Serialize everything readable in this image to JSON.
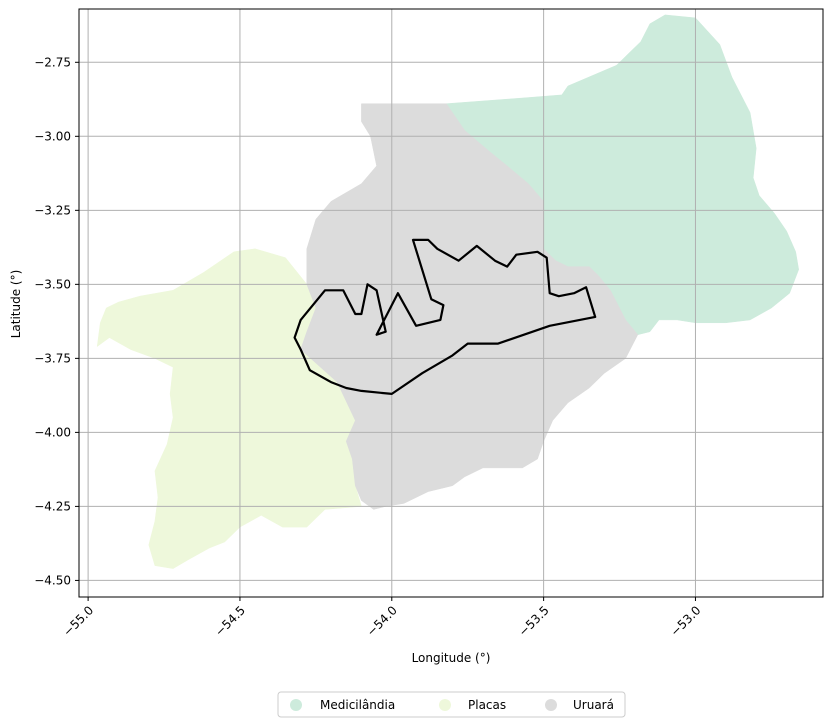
{
  "chart_data": {
    "type": "map",
    "xlabel": "Longitude (°)",
    "ylabel": "Latitude (°)",
    "xlim": [
      -55.03,
      -52.58
    ],
    "ylim": [
      -4.556,
      -2.57
    ],
    "grid": true,
    "xticks": [
      -55.0,
      -54.5,
      -54.0,
      -53.5,
      -53.0
    ],
    "xtick_labels": [
      "−55.0",
      "−54.5",
      "−54.0",
      "−53.5",
      "−53.0"
    ],
    "yticks": [
      -2.75,
      -3.0,
      -3.25,
      -3.5,
      -3.75,
      -4.0,
      -4.25,
      -4.5
    ],
    "ytick_labels": [
      "−2.75",
      "−3.00",
      "−3.25",
      "−3.50",
      "−3.75",
      "−4.00",
      "−4.25",
      "−4.50"
    ],
    "legend_position": "bottom-center",
    "regions": [
      {
        "name": "Medicilândia",
        "color": "#cdebdc",
        "outline": [
          [
            -53.82,
            -2.89
          ],
          [
            -53.56,
            -2.87
          ],
          [
            -53.44,
            -2.86
          ],
          [
            -53.42,
            -2.83
          ],
          [
            -53.26,
            -2.76
          ],
          [
            -53.18,
            -2.68
          ],
          [
            -53.15,
            -2.62
          ],
          [
            -53.1,
            -2.59
          ],
          [
            -53.0,
            -2.6
          ],
          [
            -52.92,
            -2.69
          ],
          [
            -52.88,
            -2.8
          ],
          [
            -52.82,
            -2.92
          ],
          [
            -52.8,
            -3.04
          ],
          [
            -52.81,
            -3.14
          ],
          [
            -52.79,
            -3.2
          ],
          [
            -52.74,
            -3.26
          ],
          [
            -52.7,
            -3.32
          ],
          [
            -52.67,
            -3.39
          ],
          [
            -52.66,
            -3.45
          ],
          [
            -52.69,
            -3.53
          ],
          [
            -52.75,
            -3.58
          ],
          [
            -52.82,
            -3.62
          ],
          [
            -52.9,
            -3.63
          ],
          [
            -53.0,
            -3.63
          ],
          [
            -53.06,
            -3.62
          ],
          [
            -53.12,
            -3.62
          ],
          [
            -53.15,
            -3.66
          ],
          [
            -53.19,
            -3.67
          ],
          [
            -53.23,
            -3.62
          ],
          [
            -53.28,
            -3.52
          ],
          [
            -53.32,
            -3.47
          ],
          [
            -53.35,
            -3.44
          ],
          [
            -53.42,
            -3.44
          ],
          [
            -53.46,
            -3.42
          ],
          [
            -53.5,
            -3.38
          ],
          [
            -53.5,
            -3.29
          ],
          [
            -53.5,
            -3.22
          ],
          [
            -53.55,
            -3.16
          ],
          [
            -53.62,
            -3.1
          ],
          [
            -53.68,
            -3.05
          ],
          [
            -53.76,
            -2.98
          ],
          [
            -53.82,
            -2.89
          ]
        ]
      },
      {
        "name": "Placas",
        "color": "#eef8db",
        "outline": [
          [
            -54.52,
            -3.39
          ],
          [
            -54.45,
            -3.38
          ],
          [
            -54.35,
            -3.41
          ],
          [
            -54.28,
            -3.5
          ],
          [
            -54.25,
            -3.58
          ],
          [
            -54.28,
            -3.66
          ],
          [
            -54.3,
            -3.72
          ],
          [
            -54.18,
            -3.83
          ],
          [
            -54.12,
            -3.96
          ],
          [
            -54.15,
            -4.03
          ],
          [
            -54.13,
            -4.09
          ],
          [
            -54.12,
            -4.18
          ],
          [
            -54.1,
            -4.25
          ],
          [
            -54.22,
            -4.26
          ],
          [
            -54.28,
            -4.32
          ],
          [
            -54.36,
            -4.32
          ],
          [
            -54.43,
            -4.28
          ],
          [
            -54.5,
            -4.32
          ],
          [
            -54.55,
            -4.37
          ],
          [
            -54.6,
            -4.39
          ],
          [
            -54.67,
            -4.43
          ],
          [
            -54.72,
            -4.46
          ],
          [
            -54.78,
            -4.45
          ],
          [
            -54.8,
            -4.38
          ],
          [
            -54.78,
            -4.3
          ],
          [
            -54.77,
            -4.22
          ],
          [
            -54.78,
            -4.13
          ],
          [
            -54.74,
            -4.04
          ],
          [
            -54.72,
            -3.95
          ],
          [
            -54.73,
            -3.87
          ],
          [
            -54.72,
            -3.78
          ],
          [
            -54.78,
            -3.75
          ],
          [
            -54.86,
            -3.72
          ],
          [
            -54.93,
            -3.68
          ],
          [
            -54.97,
            -3.71
          ],
          [
            -54.96,
            -3.63
          ],
          [
            -54.94,
            -3.58
          ],
          [
            -54.9,
            -3.56
          ],
          [
            -54.83,
            -3.54
          ],
          [
            -54.72,
            -3.52
          ],
          [
            -54.62,
            -3.46
          ],
          [
            -54.52,
            -3.39
          ]
        ]
      },
      {
        "name": "Uruará",
        "color": "#dcdcdc",
        "outline": [
          [
            -54.1,
            -2.89
          ],
          [
            -53.82,
            -2.89
          ],
          [
            -53.76,
            -2.98
          ],
          [
            -53.68,
            -3.05
          ],
          [
            -53.62,
            -3.1
          ],
          [
            -53.55,
            -3.16
          ],
          [
            -53.5,
            -3.22
          ],
          [
            -53.5,
            -3.29
          ],
          [
            -53.5,
            -3.38
          ],
          [
            -53.46,
            -3.42
          ],
          [
            -53.42,
            -3.44
          ],
          [
            -53.35,
            -3.44
          ],
          [
            -53.32,
            -3.47
          ],
          [
            -53.28,
            -3.52
          ],
          [
            -53.23,
            -3.62
          ],
          [
            -53.19,
            -3.67
          ],
          [
            -53.23,
            -3.75
          ],
          [
            -53.3,
            -3.8
          ],
          [
            -53.35,
            -3.85
          ],
          [
            -53.42,
            -3.9
          ],
          [
            -53.47,
            -3.96
          ],
          [
            -53.5,
            -4.03
          ],
          [
            -53.52,
            -4.09
          ],
          [
            -53.57,
            -4.12
          ],
          [
            -53.63,
            -4.12
          ],
          [
            -53.7,
            -4.12
          ],
          [
            -53.76,
            -4.15
          ],
          [
            -53.8,
            -4.18
          ],
          [
            -53.88,
            -4.2
          ],
          [
            -53.96,
            -4.24
          ],
          [
            -54.02,
            -4.25
          ],
          [
            -54.06,
            -4.26
          ],
          [
            -54.1,
            -4.23
          ],
          [
            -54.12,
            -4.18
          ],
          [
            -54.13,
            -4.09
          ],
          [
            -54.15,
            -4.03
          ],
          [
            -54.12,
            -3.96
          ],
          [
            -54.18,
            -3.83
          ],
          [
            -54.3,
            -3.72
          ],
          [
            -54.28,
            -3.66
          ],
          [
            -54.25,
            -3.58
          ],
          [
            -54.28,
            -3.5
          ],
          [
            -54.28,
            -3.38
          ],
          [
            -54.25,
            -3.28
          ],
          [
            -54.2,
            -3.22
          ],
          [
            -54.1,
            -3.16
          ],
          [
            -54.05,
            -3.1
          ],
          [
            -54.07,
            -3.0
          ],
          [
            -54.1,
            -2.95
          ],
          [
            -54.1,
            -2.89
          ]
        ]
      }
    ],
    "highlight_outline": {
      "color": "#000000",
      "outline": [
        [
          -54.3,
          -3.62
        ],
        [
          -54.22,
          -3.52
        ],
        [
          -54.16,
          -3.52
        ],
        [
          -54.12,
          -3.6
        ],
        [
          -54.1,
          -3.6
        ],
        [
          -54.08,
          -3.5
        ],
        [
          -54.05,
          -3.52
        ],
        [
          -54.02,
          -3.66
        ],
        [
          -54.05,
          -3.67
        ],
        [
          -53.98,
          -3.53
        ],
        [
          -53.92,
          -3.64
        ],
        [
          -53.84,
          -3.62
        ],
        [
          -53.83,
          -3.57
        ],
        [
          -53.87,
          -3.55
        ],
        [
          -53.93,
          -3.35
        ],
        [
          -53.88,
          -3.35
        ],
        [
          -53.85,
          -3.38
        ],
        [
          -53.78,
          -3.42
        ],
        [
          -53.72,
          -3.37
        ],
        [
          -53.66,
          -3.42
        ],
        [
          -53.62,
          -3.44
        ],
        [
          -53.59,
          -3.4
        ],
        [
          -53.52,
          -3.39
        ],
        [
          -53.49,
          -3.41
        ],
        [
          -53.48,
          -3.53
        ],
        [
          -53.45,
          -3.54
        ],
        [
          -53.4,
          -3.53
        ],
        [
          -53.36,
          -3.51
        ],
        [
          -53.33,
          -3.61
        ],
        [
          -53.48,
          -3.64
        ],
        [
          -53.65,
          -3.7
        ],
        [
          -53.75,
          -3.7
        ],
        [
          -53.8,
          -3.74
        ],
        [
          -53.9,
          -3.8
        ],
        [
          -54.0,
          -3.87
        ],
        [
          -54.1,
          -3.86
        ],
        [
          -54.15,
          -3.85
        ],
        [
          -54.2,
          -3.83
        ],
        [
          -54.27,
          -3.79
        ],
        [
          -54.3,
          -3.72
        ],
        [
          -54.32,
          -3.68
        ],
        [
          -54.3,
          -3.62
        ]
      ]
    }
  },
  "legend": {
    "items": [
      {
        "label": "Medicilândia",
        "color": "#cdebdc"
      },
      {
        "label": "Placas",
        "color": "#eef8db"
      },
      {
        "label": "Uruará",
        "color": "#dcdcdc"
      }
    ]
  }
}
